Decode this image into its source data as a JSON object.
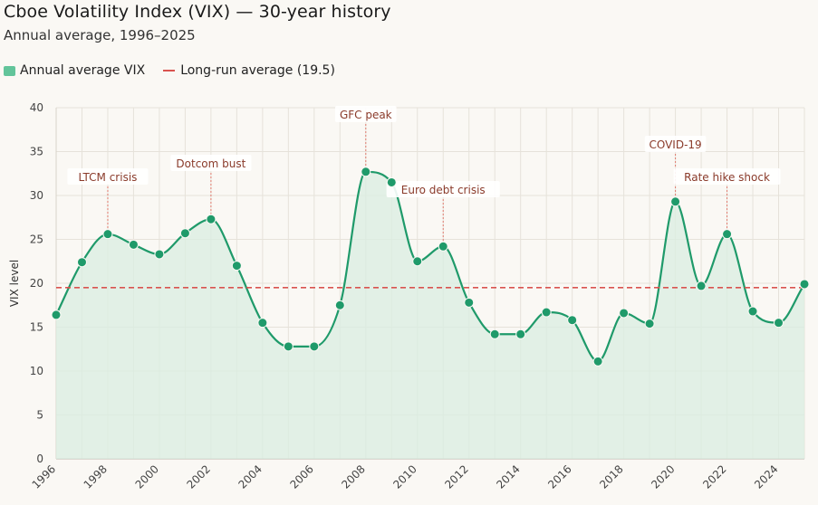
{
  "header": {
    "title": "Cboe Volatility Index (VIX) — 30-year history",
    "subtitle": "Annual average, 1996–2025"
  },
  "legend": {
    "series_label": "Annual average VIX",
    "reference_label": "Long-run average (19.5)"
  },
  "chart_data": {
    "type": "area",
    "title": "Cboe Volatility Index (VIX) — 30-year history",
    "subtitle": "Annual average, 1996–2025",
    "xlabel": "",
    "ylabel": "VIX level",
    "ylim": [
      0,
      40
    ],
    "yticks": [
      0,
      5,
      10,
      15,
      20,
      25,
      30,
      35,
      40
    ],
    "xticks": [
      1996,
      1998,
      2000,
      2002,
      2004,
      2006,
      2008,
      2010,
      2012,
      2014,
      2016,
      2018,
      2020,
      2022,
      2024
    ],
    "grid": true,
    "legend_position": "top-left",
    "colors": {
      "line": "#1f9a6a",
      "fill": "#d9eee2",
      "reference": "#d9534f"
    },
    "reference_line": {
      "label": "Long-run average (19.5)",
      "value": 19.5
    },
    "series": [
      {
        "name": "Annual average VIX",
        "x": [
          1996,
          1997,
          1998,
          1999,
          2000,
          2001,
          2002,
          2003,
          2004,
          2005,
          2006,
          2007,
          2008,
          2009,
          2010,
          2011,
          2012,
          2013,
          2014,
          2015,
          2016,
          2017,
          2018,
          2019,
          2020,
          2021,
          2022,
          2023,
          2024,
          2025
        ],
        "values": [
          16.4,
          22.4,
          25.6,
          24.4,
          23.3,
          25.7,
          27.3,
          22.0,
          15.5,
          12.8,
          12.8,
          17.5,
          32.7,
          31.5,
          22.5,
          24.2,
          17.8,
          14.2,
          14.2,
          16.7,
          15.8,
          11.1,
          16.6,
          15.4,
          29.3,
          19.7,
          25.6,
          16.8,
          15.5,
          19.9
        ]
      }
    ],
    "annotations": [
      {
        "x": 1998,
        "text": "LTCM crisis"
      },
      {
        "x": 2002,
        "text": "Dotcom bust"
      },
      {
        "x": 2008,
        "text": "GFC peak"
      },
      {
        "x": 2011,
        "text": "Euro debt crisis"
      },
      {
        "x": 2020,
        "text": "COVID-19"
      },
      {
        "x": 2022,
        "text": "Rate hike shock"
      }
    ]
  }
}
